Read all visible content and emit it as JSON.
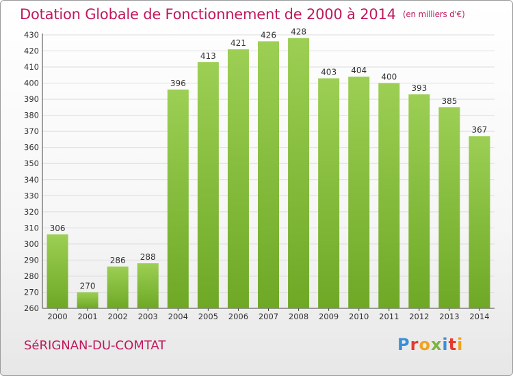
{
  "header": {
    "title": "Dotation Globale de Fonctionnement de 2000 à 2014",
    "subtitle": "(en milliers d'€)"
  },
  "footer": {
    "commune": "SéRIGNAN-DU-COMTAT",
    "brand": "Proxiti",
    "brand_colors": [
      "#3a8fd8",
      "#e5392b",
      "#f2a21c",
      "#7cb342",
      "#3a8fd8",
      "#e5392b",
      "#f2a21c"
    ]
  },
  "colors": {
    "bar_light": "#9ccf54",
    "bar_dark": "#6ea825",
    "grid": "#dcdcdc",
    "title": "#c0185d",
    "axis_text": "#333333"
  },
  "chart_data": {
    "type": "bar",
    "title": "Dotation Globale de Fonctionnement de 2000 à 2014",
    "subtitle": "(en milliers d'€)",
    "xlabel": "",
    "ylabel": "",
    "categories": [
      "2000",
      "2001",
      "2002",
      "2003",
      "2004",
      "2005",
      "2006",
      "2007",
      "2008",
      "2009",
      "2010",
      "2011",
      "2012",
      "2013",
      "2014"
    ],
    "values": [
      306,
      270,
      286,
      288,
      396,
      413,
      421,
      426,
      428,
      403,
      404,
      400,
      393,
      385,
      367
    ],
    "ylim": [
      260,
      430
    ],
    "yticks": [
      260,
      270,
      280,
      290,
      300,
      310,
      320,
      330,
      340,
      350,
      360,
      370,
      380,
      390,
      400,
      410,
      420,
      430
    ],
    "grid": true,
    "data_labels": true,
    "legend": "none"
  }
}
